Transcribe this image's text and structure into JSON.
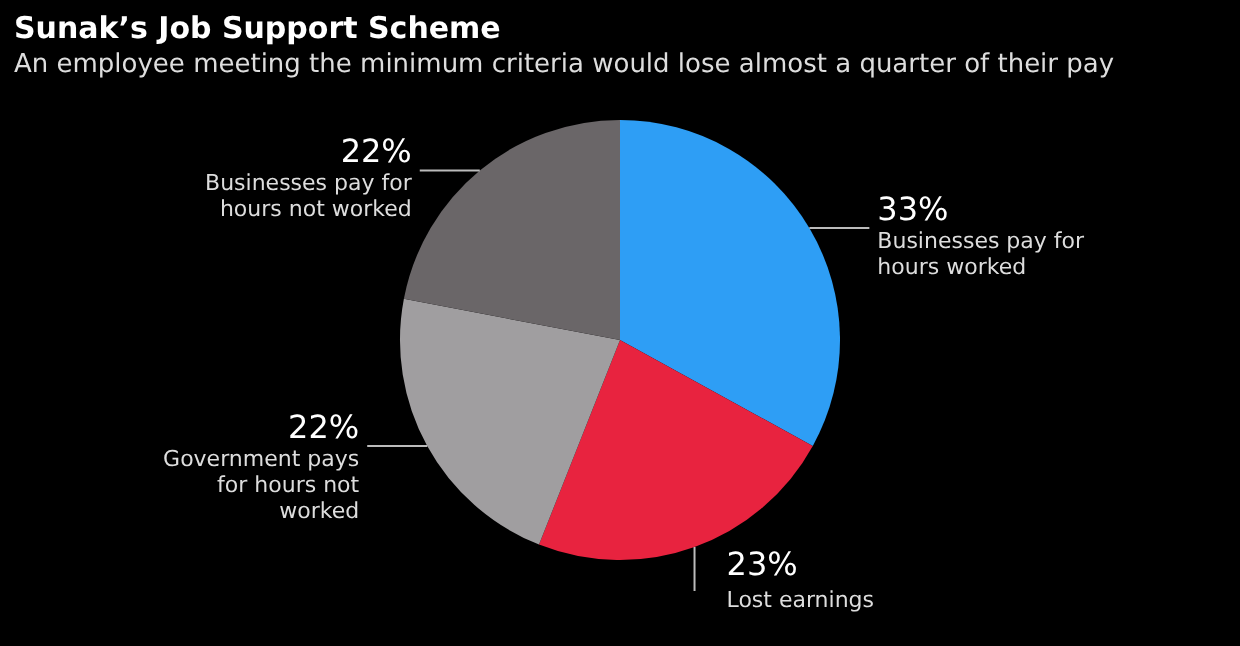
{
  "chart_data": {
    "type": "pie",
    "title": "Sunak’s Job Support Scheme",
    "subtitle": "An employee meeting the minimum criteria would lose almost a quarter of their pay",
    "categories": [
      "Businesses pay for hours worked",
      "Lost earnings",
      "Government pays for hours not worked",
      "Businesses pay for hours not worked"
    ],
    "values": [
      33,
      23,
      22,
      22
    ],
    "value_labels": [
      "33%",
      "23%",
      "22%",
      "22%"
    ],
    "colors": [
      "#2e9ef5",
      "#e8233f",
      "#a09ea0",
      "#6a6668"
    ],
    "legend": false
  }
}
